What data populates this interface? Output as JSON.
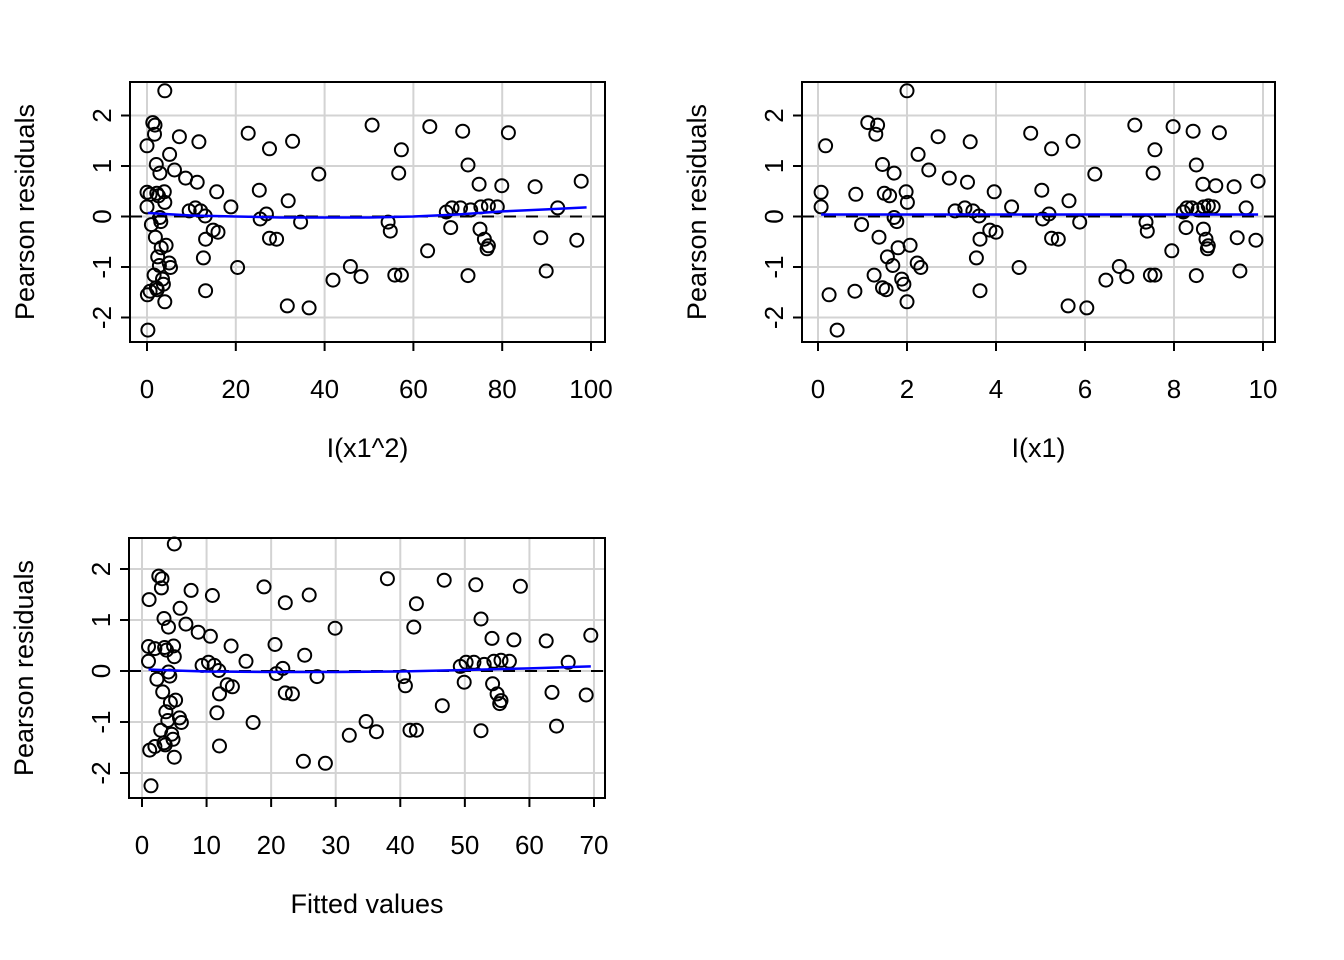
{
  "figure": {
    "background": "#ffffff",
    "n_points_per_panel": 100
  },
  "colors": {
    "marker": "#000000",
    "axis": "#000000",
    "grid": "#d3d3d3",
    "zero_line": "#000000",
    "smooth_line": "#0000ff",
    "text": "#000000"
  },
  "chart_data": [
    {
      "type": "scatter",
      "panel": "top-left",
      "xlabel": "I(x1^2)",
      "ylabel": "Pearson residuals",
      "xlim": [
        -3.8,
        103.2
      ],
      "ylim": [
        -2.48,
        2.66
      ],
      "xticks": [
        0,
        20,
        40,
        60,
        80,
        100
      ],
      "yticks": [
        -2,
        -1,
        0,
        1,
        2
      ],
      "grid": true,
      "zero_line_y": 0,
      "zero_line_style": "dashed",
      "smooth": [
        [
          0.2,
          0.07
        ],
        [
          10,
          0.02
        ],
        [
          20,
          0.0
        ],
        [
          30,
          -0.02
        ],
        [
          40,
          -0.02
        ],
        [
          50,
          -0.02
        ],
        [
          60,
          0.0
        ],
        [
          70,
          0.04
        ],
        [
          80,
          0.1
        ],
        [
          90,
          0.14
        ],
        [
          99,
          0.18
        ]
      ],
      "points": [
        [
          4.0,
          2.49
        ],
        [
          1.3,
          1.86
        ],
        [
          1.8,
          1.81
        ],
        [
          1.7,
          1.63
        ],
        [
          0.0,
          1.4
        ],
        [
          7.3,
          1.58
        ],
        [
          11.7,
          1.48
        ],
        [
          22.8,
          1.65
        ],
        [
          5.1,
          1.23
        ],
        [
          2.1,
          1.03
        ],
        [
          2.9,
          0.86
        ],
        [
          6.2,
          0.92
        ],
        [
          8.7,
          0.76
        ],
        [
          11.3,
          0.68
        ],
        [
          0.0,
          0.48
        ],
        [
          0.7,
          0.44
        ],
        [
          2.2,
          0.46
        ],
        [
          2.6,
          0.41
        ],
        [
          3.9,
          0.49
        ],
        [
          4.0,
          0.28
        ],
        [
          0.0,
          0.19
        ],
        [
          15.7,
          0.49
        ],
        [
          18.9,
          0.19
        ],
        [
          9.5,
          0.11
        ],
        [
          10.9,
          0.17
        ],
        [
          12.1,
          0.11
        ],
        [
          13.1,
          0.01
        ],
        [
          2.9,
          -0.02
        ],
        [
          3.1,
          -0.1
        ],
        [
          1.0,
          -0.16
        ],
        [
          1.9,
          -0.41
        ],
        [
          3.2,
          -0.62
        ],
        [
          4.3,
          -0.57
        ],
        [
          2.4,
          -0.8
        ],
        [
          14.9,
          -0.27
        ],
        [
          16.0,
          -0.31
        ],
        [
          13.2,
          -0.45
        ],
        [
          12.7,
          -0.82
        ],
        [
          5.0,
          -0.92
        ],
        [
          5.3,
          -1.01
        ],
        [
          2.8,
          -0.97
        ],
        [
          3.5,
          -1.24
        ],
        [
          3.7,
          -1.34
        ],
        [
          1.6,
          -1.16
        ],
        [
          2.1,
          -1.41
        ],
        [
          2.3,
          -1.45
        ],
        [
          0.7,
          -1.48
        ],
        [
          0.1,
          -1.55
        ],
        [
          20.4,
          -1.01
        ],
        [
          13.2,
          -1.47
        ],
        [
          4.0,
          -1.69
        ],
        [
          0.2,
          -2.25
        ],
        [
          50.7,
          1.81
        ],
        [
          63.7,
          1.78
        ],
        [
          71.1,
          1.69
        ],
        [
          81.4,
          1.66
        ],
        [
          32.8,
          1.49
        ],
        [
          27.6,
          1.34
        ],
        [
          57.3,
          1.32
        ],
        [
          56.7,
          0.86
        ],
        [
          38.7,
          0.84
        ],
        [
          72.3,
          1.02
        ],
        [
          74.8,
          0.64
        ],
        [
          79.9,
          0.61
        ],
        [
          87.4,
          0.59
        ],
        [
          97.8,
          0.7
        ],
        [
          25.3,
          0.52
        ],
        [
          31.8,
          0.31
        ],
        [
          26.9,
          0.05
        ],
        [
          92.5,
          0.17
        ],
        [
          68.7,
          0.17
        ],
        [
          70.6,
          0.17
        ],
        [
          72.9,
          0.13
        ],
        [
          75.2,
          0.19
        ],
        [
          76.9,
          0.21
        ],
        [
          78.9,
          0.19
        ],
        [
          67.4,
          0.09
        ],
        [
          34.6,
          -0.11
        ],
        [
          25.5,
          -0.05
        ],
        [
          54.3,
          -0.11
        ],
        [
          54.8,
          -0.29
        ],
        [
          68.4,
          -0.22
        ],
        [
          75.0,
          -0.25
        ],
        [
          76.0,
          -0.45
        ],
        [
          76.9,
          -0.58
        ],
        [
          76.6,
          -0.64
        ],
        [
          88.7,
          -0.42
        ],
        [
          96.8,
          -0.47
        ],
        [
          27.6,
          -0.43
        ],
        [
          29.2,
          -0.45
        ],
        [
          63.2,
          -0.68
        ],
        [
          45.8,
          -0.99
        ],
        [
          41.9,
          -1.26
        ],
        [
          48.2,
          -1.19
        ],
        [
          55.8,
          -1.16
        ],
        [
          57.3,
          -1.16
        ],
        [
          72.3,
          -1.17
        ],
        [
          89.9,
          -1.08
        ],
        [
          31.6,
          -1.77
        ],
        [
          36.5,
          -1.81
        ]
      ]
    },
    {
      "type": "scatter",
      "panel": "top-right",
      "xlabel": "I(x1)",
      "ylabel": "Pearson residuals",
      "xlim": [
        -0.36,
        10.27
      ],
      "ylim": [
        -2.48,
        2.66
      ],
      "xticks": [
        0,
        2,
        4,
        6,
        8,
        10
      ],
      "yticks": [
        -2,
        -1,
        0,
        1,
        2
      ],
      "grid": true,
      "zero_line_y": 0,
      "zero_line_style": "dashed",
      "smooth": [
        [
          0.07,
          0.04
        ],
        [
          9.89,
          0.04
        ]
      ],
      "points": [
        [
          2.0,
          2.49
        ],
        [
          1.12,
          1.86
        ],
        [
          1.34,
          1.81
        ],
        [
          1.3,
          1.63
        ],
        [
          0.17,
          1.4
        ],
        [
          2.7,
          1.58
        ],
        [
          3.42,
          1.48
        ],
        [
          4.78,
          1.65
        ],
        [
          2.25,
          1.23
        ],
        [
          1.45,
          1.03
        ],
        [
          1.71,
          0.86
        ],
        [
          2.49,
          0.92
        ],
        [
          2.95,
          0.76
        ],
        [
          3.36,
          0.68
        ],
        [
          0.07,
          0.48
        ],
        [
          0.85,
          0.44
        ],
        [
          1.49,
          0.46
        ],
        [
          1.61,
          0.41
        ],
        [
          1.98,
          0.49
        ],
        [
          2.01,
          0.28
        ],
        [
          0.07,
          0.19
        ],
        [
          3.96,
          0.49
        ],
        [
          4.35,
          0.19
        ],
        [
          3.08,
          0.11
        ],
        [
          3.3,
          0.17
        ],
        [
          3.48,
          0.11
        ],
        [
          3.62,
          0.01
        ],
        [
          1.71,
          -0.02
        ],
        [
          1.77,
          -0.1
        ],
        [
          0.98,
          -0.16
        ],
        [
          1.37,
          -0.41
        ],
        [
          1.8,
          -0.62
        ],
        [
          2.07,
          -0.57
        ],
        [
          1.56,
          -0.8
        ],
        [
          3.86,
          -0.27
        ],
        [
          4.0,
          -0.31
        ],
        [
          3.64,
          -0.45
        ],
        [
          3.56,
          -0.82
        ],
        [
          2.23,
          -0.92
        ],
        [
          2.31,
          -1.01
        ],
        [
          1.68,
          -0.97
        ],
        [
          1.88,
          -1.24
        ],
        [
          1.93,
          -1.34
        ],
        [
          1.26,
          -1.16
        ],
        [
          1.45,
          -1.41
        ],
        [
          1.53,
          -1.45
        ],
        [
          0.83,
          -1.48
        ],
        [
          0.25,
          -1.55
        ],
        [
          4.52,
          -1.01
        ],
        [
          3.64,
          -1.47
        ],
        [
          2.0,
          -1.69
        ],
        [
          0.43,
          -2.25
        ],
        [
          7.12,
          1.81
        ],
        [
          7.98,
          1.78
        ],
        [
          8.43,
          1.69
        ],
        [
          9.02,
          1.66
        ],
        [
          5.73,
          1.49
        ],
        [
          5.25,
          1.34
        ],
        [
          7.57,
          1.32
        ],
        [
          7.53,
          0.86
        ],
        [
          6.22,
          0.84
        ],
        [
          8.5,
          1.02
        ],
        [
          8.65,
          0.64
        ],
        [
          8.94,
          0.61
        ],
        [
          9.35,
          0.59
        ],
        [
          9.89,
          0.7
        ],
        [
          5.03,
          0.52
        ],
        [
          5.64,
          0.31
        ],
        [
          5.19,
          0.05
        ],
        [
          9.62,
          0.17
        ],
        [
          8.29,
          0.17
        ],
        [
          8.4,
          0.17
        ],
        [
          8.54,
          0.13
        ],
        [
          8.67,
          0.19
        ],
        [
          8.77,
          0.21
        ],
        [
          8.88,
          0.19
        ],
        [
          8.21,
          0.09
        ],
        [
          5.88,
          -0.11
        ],
        [
          5.05,
          -0.05
        ],
        [
          7.37,
          -0.11
        ],
        [
          7.4,
          -0.29
        ],
        [
          8.27,
          -0.22
        ],
        [
          8.66,
          -0.25
        ],
        [
          8.72,
          -0.45
        ],
        [
          8.77,
          -0.58
        ],
        [
          8.75,
          -0.64
        ],
        [
          9.42,
          -0.42
        ],
        [
          9.84,
          -0.47
        ],
        [
          5.25,
          -0.43
        ],
        [
          5.4,
          -0.45
        ],
        [
          7.95,
          -0.68
        ],
        [
          6.77,
          -0.99
        ],
        [
          6.47,
          -1.26
        ],
        [
          6.94,
          -1.19
        ],
        [
          7.47,
          -1.16
        ],
        [
          7.57,
          -1.16
        ],
        [
          8.5,
          -1.17
        ],
        [
          9.48,
          -1.08
        ],
        [
          5.62,
          -1.77
        ],
        [
          6.04,
          -1.81
        ]
      ]
    },
    {
      "type": "scatter",
      "panel": "bottom-left",
      "xlabel": "Fitted values",
      "ylabel": "Pearson residuals",
      "xlim": [
        -2.0,
        71.7
      ],
      "ylim": [
        -2.49,
        2.61
      ],
      "xticks": [
        0,
        10,
        20,
        30,
        40,
        50,
        60,
        70
      ],
      "yticks": [
        -2,
        -1,
        0,
        1,
        2
      ],
      "grid": true,
      "zero_line_y": 0,
      "zero_line_style": "dashed",
      "smooth": [
        [
          1,
          0.03
        ],
        [
          5,
          0.01
        ],
        [
          10,
          -0.01
        ],
        [
          20,
          -0.02
        ],
        [
          30,
          -0.02
        ],
        [
          40,
          -0.01
        ],
        [
          50,
          0.02
        ],
        [
          60,
          0.05
        ],
        [
          69.5,
          0.09
        ]
      ],
      "points": [
        [
          5.0,
          2.49
        ],
        [
          2.6,
          1.86
        ],
        [
          3.1,
          1.81
        ],
        [
          3.0,
          1.63
        ],
        [
          1.1,
          1.4
        ],
        [
          7.6,
          1.58
        ],
        [
          10.9,
          1.48
        ],
        [
          18.9,
          1.65
        ],
        [
          5.9,
          1.23
        ],
        [
          3.4,
          1.03
        ],
        [
          4.1,
          0.86
        ],
        [
          6.8,
          0.92
        ],
        [
          8.7,
          0.76
        ],
        [
          10.6,
          0.68
        ],
        [
          1.0,
          0.48
        ],
        [
          2.0,
          0.44
        ],
        [
          3.5,
          0.46
        ],
        [
          3.8,
          0.41
        ],
        [
          4.9,
          0.49
        ],
        [
          5.0,
          0.28
        ],
        [
          1.0,
          0.19
        ],
        [
          13.8,
          0.49
        ],
        [
          16.1,
          0.19
        ],
        [
          9.3,
          0.11
        ],
        [
          10.3,
          0.17
        ],
        [
          11.2,
          0.11
        ],
        [
          11.9,
          0.01
        ],
        [
          4.1,
          -0.02
        ],
        [
          4.3,
          -0.1
        ],
        [
          2.3,
          -0.16
        ],
        [
          3.2,
          -0.41
        ],
        [
          4.4,
          -0.62
        ],
        [
          5.2,
          -0.57
        ],
        [
          3.7,
          -0.8
        ],
        [
          13.2,
          -0.27
        ],
        [
          14.0,
          -0.31
        ],
        [
          12.0,
          -0.45
        ],
        [
          11.6,
          -0.82
        ],
        [
          5.8,
          -0.92
        ],
        [
          6.1,
          -1.01
        ],
        [
          4.0,
          -0.97
        ],
        [
          4.6,
          -1.24
        ],
        [
          4.8,
          -1.34
        ],
        [
          2.9,
          -1.16
        ],
        [
          3.4,
          -1.41
        ],
        [
          3.6,
          -1.45
        ],
        [
          2.0,
          -1.48
        ],
        [
          1.2,
          -1.55
        ],
        [
          17.2,
          -1.01
        ],
        [
          12.0,
          -1.47
        ],
        [
          5.0,
          -1.69
        ],
        [
          1.4,
          -2.25
        ],
        [
          38.0,
          1.81
        ],
        [
          46.8,
          1.78
        ],
        [
          51.7,
          1.69
        ],
        [
          58.6,
          1.66
        ],
        [
          25.9,
          1.49
        ],
        [
          22.2,
          1.34
        ],
        [
          42.5,
          1.32
        ],
        [
          42.1,
          0.86
        ],
        [
          29.9,
          0.84
        ],
        [
          52.5,
          1.02
        ],
        [
          54.2,
          0.64
        ],
        [
          57.6,
          0.61
        ],
        [
          62.6,
          0.59
        ],
        [
          69.5,
          0.7
        ],
        [
          20.6,
          0.52
        ],
        [
          25.2,
          0.31
        ],
        [
          21.8,
          0.05
        ],
        [
          66.0,
          0.17
        ],
        [
          50.2,
          0.17
        ],
        [
          51.4,
          0.17
        ],
        [
          53.0,
          0.13
        ],
        [
          54.5,
          0.19
        ],
        [
          55.6,
          0.21
        ],
        [
          56.9,
          0.19
        ],
        [
          49.3,
          0.09
        ],
        [
          27.1,
          -0.11
        ],
        [
          20.8,
          -0.05
        ],
        [
          40.5,
          -0.11
        ],
        [
          40.8,
          -0.29
        ],
        [
          49.9,
          -0.22
        ],
        [
          54.3,
          -0.25
        ],
        [
          55.0,
          -0.45
        ],
        [
          55.6,
          -0.58
        ],
        [
          55.4,
          -0.64
        ],
        [
          63.5,
          -0.42
        ],
        [
          68.8,
          -0.47
        ],
        [
          22.2,
          -0.43
        ],
        [
          23.3,
          -0.45
        ],
        [
          46.5,
          -0.68
        ],
        [
          34.7,
          -0.99
        ],
        [
          32.1,
          -1.26
        ],
        [
          36.3,
          -1.19
        ],
        [
          41.5,
          -1.16
        ],
        [
          42.5,
          -1.16
        ],
        [
          52.5,
          -1.17
        ],
        [
          64.2,
          -1.08
        ],
        [
          25.0,
          -1.77
        ],
        [
          28.4,
          -1.81
        ]
      ]
    }
  ]
}
